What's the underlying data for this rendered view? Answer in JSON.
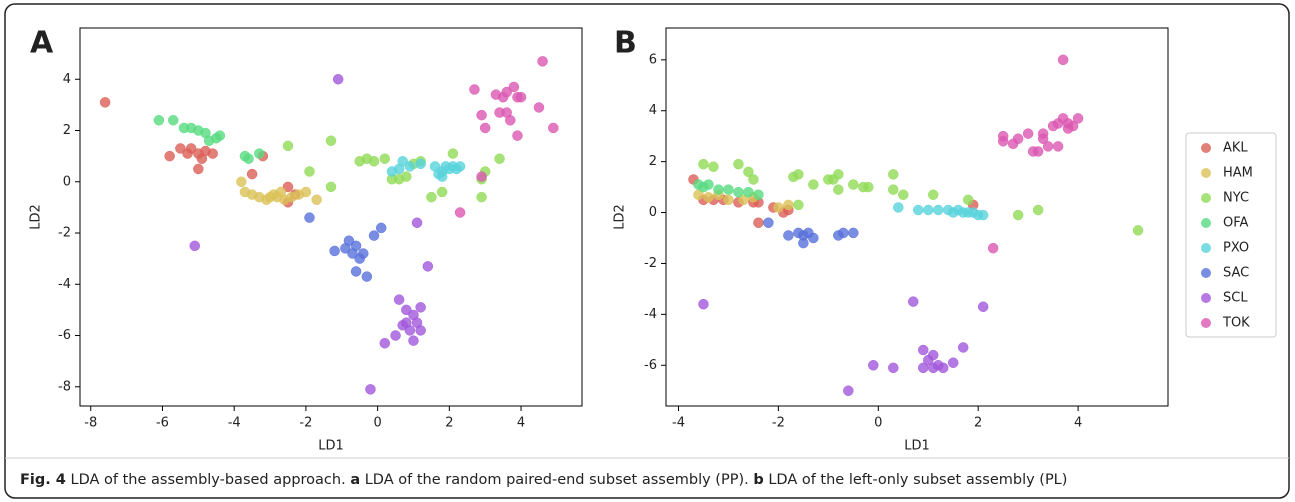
{
  "chart_data": [
    {
      "type": "scatter",
      "panel": "A",
      "xlabel": "LD1",
      "ylabel": "LD2",
      "xlim": [
        -8.3,
        5.7
      ],
      "ylim": [
        -8.75,
        6
      ],
      "xticks": [
        -8,
        -6,
        -4,
        -2,
        0,
        2,
        4
      ],
      "yticks": [
        -8,
        -6,
        -4,
        -2,
        0,
        2,
        4
      ],
      "legend": false,
      "series": [
        {
          "color": "#db5f57",
          "x": [
            -7.6,
            -5.8,
            -5.5,
            -5.3,
            -5.2,
            -5.0,
            -4.9,
            -5.0,
            -4.8,
            -4.6,
            -3.2,
            -3.5,
            -2.5,
            -2.5,
            -2.3
          ],
          "y": [
            3.1,
            1.0,
            1.3,
            1.1,
            1.3,
            1.1,
            0.9,
            0.5,
            1.2,
            1.1,
            1.0,
            0.3,
            -0.2,
            -0.8,
            -0.5
          ]
        },
        {
          "color": "#dbc257",
          "x": [
            -3.8,
            -3.7,
            -3.5,
            -3.3,
            -3.0,
            -2.8,
            -2.7,
            -2.6,
            -2.4,
            -2.2,
            -2.0,
            -1.7,
            -2.9,
            -3.1
          ],
          "y": [
            0,
            -0.4,
            -0.5,
            -0.6,
            -0.6,
            -0.6,
            -0.4,
            -0.7,
            -0.6,
            -0.5,
            -0.4,
            -0.7,
            -0.5,
            -0.7
          ]
        },
        {
          "color": "#91db57",
          "x": [
            -2.5,
            -1.3,
            -1.9,
            -1.3,
            -0.5,
            -0.3,
            -0.1,
            0.2,
            0.4,
            0.6,
            0.8,
            1.0,
            1.2,
            1.5,
            1.8,
            2.1,
            2.9,
            2.9,
            3.0,
            3.4
          ],
          "y": [
            1.4,
            1.6,
            0.4,
            -0.2,
            0.8,
            0.9,
            0.8,
            0.9,
            0.1,
            0.1,
            0.2,
            0.7,
            0.8,
            -0.6,
            -0.4,
            1.1,
            0.1,
            -0.6,
            0.4,
            0.9
          ]
        },
        {
          "color": "#57db80",
          "x": [
            -6.1,
            -5.7,
            -5.4,
            -5.2,
            -5.0,
            -4.8,
            -4.7,
            -4.5,
            -4.4,
            -3.7,
            -3.6,
            -3.3
          ],
          "y": [
            2.4,
            2.4,
            2.1,
            2.1,
            2.0,
            1.9,
            1.6,
            1.7,
            1.8,
            1.0,
            0.9,
            1.1
          ]
        },
        {
          "color": "#57d3db",
          "x": [
            0.4,
            0.6,
            0.7,
            0.9,
            1.2,
            1.6,
            1.7,
            1.8,
            1.9,
            2.0,
            2.1,
            2.2,
            2.3,
            1.8
          ],
          "y": [
            0.4,
            0.5,
            0.8,
            0.6,
            0.7,
            0.6,
            0.3,
            0.4,
            0.6,
            0.5,
            0.6,
            0.5,
            0.6,
            0.2
          ]
        },
        {
          "color": "#5770db",
          "x": [
            -1.9,
            -1.2,
            -0.9,
            -0.8,
            -0.7,
            -0.6,
            -0.5,
            -0.4,
            -0.3,
            -0.1,
            0.1,
            -0.6
          ],
          "y": [
            -1.4,
            -2.7,
            -2.6,
            -2.3,
            -2.8,
            -3.5,
            -3.0,
            -2.8,
            -3.7,
            -2.1,
            -1.8,
            -2.5
          ]
        },
        {
          "color": "#a157db",
          "x": [
            -5.1,
            -1.1,
            -0.2,
            0.2,
            0.5,
            0.6,
            0.8,
            0.7,
            0.9,
            1.0,
            1.1,
            1.2,
            1.2,
            1.4,
            1.1,
            0.8,
            1.0
          ],
          "y": [
            -2.5,
            4.0,
            -8.1,
            -6.3,
            -6.0,
            -4.6,
            -5.0,
            -5.6,
            -5.8,
            -5.2,
            -5.5,
            -4.9,
            -5.8,
            -3.3,
            -1.6,
            -5.5,
            -6.2
          ]
        },
        {
          "color": "#db57b2",
          "x": [
            2.7,
            2.9,
            3.0,
            3.3,
            3.5,
            3.6,
            3.8,
            3.9,
            4.0,
            3.4,
            3.6,
            3.7,
            3.9,
            4.5,
            4.6,
            4.9,
            2.3,
            2.9
          ],
          "y": [
            3.6,
            2.6,
            2.1,
            3.4,
            3.3,
            3.5,
            3.7,
            3.3,
            3.3,
            2.7,
            2.7,
            2.4,
            1.8,
            2.9,
            4.7,
            2.1,
            -1.2,
            0.2
          ]
        }
      ]
    },
    {
      "type": "scatter",
      "panel": "B",
      "xlabel": "LD1",
      "ylabel": "LD2",
      "xlim": [
        -4.25,
        5.8
      ],
      "ylim": [
        -7.6,
        7.25
      ],
      "xticks": [
        -4,
        -2,
        0,
        2,
        4
      ],
      "yticks": [
        -6,
        -4,
        -2,
        0,
        2,
        4,
        6
      ],
      "legend": true,
      "legend_position": "outside right",
      "series": [
        {
          "name": "AKL",
          "color": "#db5f57",
          "x": [
            -3.7,
            -3.5,
            -3.3,
            -3.1,
            -2.8,
            -2.5,
            -2.4,
            -2.1,
            -1.9,
            -1.8,
            -2.4,
            1.9
          ],
          "y": [
            1.3,
            0.5,
            0.5,
            0.5,
            0.4,
            0.4,
            0.4,
            0.2,
            0.0,
            0.1,
            -0.4,
            0.3
          ]
        },
        {
          "name": "HAM",
          "color": "#dbc257",
          "x": [
            -3.6,
            -3.4,
            -3.2,
            -3.0,
            -2.7,
            -2.5,
            -1.8,
            -2.0
          ],
          "y": [
            0.7,
            0.6,
            0.7,
            0.5,
            0.5,
            0.6,
            0.3,
            0.2
          ]
        },
        {
          "name": "NYC",
          "color": "#91db57",
          "x": [
            -3.5,
            -3.3,
            -2.8,
            -2.6,
            -2.5,
            -1.7,
            -1.6,
            -1.3,
            -1.0,
            -0.9,
            -0.8,
            -0.8,
            -0.5,
            -0.3,
            -0.2,
            0.3,
            0.3,
            0.5,
            1.1,
            1.8,
            2.8,
            3.2,
            5.2,
            -1.6
          ],
          "y": [
            1.9,
            1.8,
            1.9,
            1.6,
            1.3,
            1.4,
            1.5,
            1.1,
            1.3,
            1.3,
            1.5,
            0.9,
            1.1,
            1.0,
            1.0,
            1.5,
            0.9,
            0.7,
            0.7,
            0.5,
            -0.1,
            0.1,
            -0.7,
            0.3
          ]
        },
        {
          "name": "OFA",
          "color": "#57db80",
          "x": [
            -3.5,
            -3.4,
            -3.2,
            -3.0,
            -2.8,
            -2.6,
            -2.4,
            -3.6
          ],
          "y": [
            1.0,
            1.1,
            0.9,
            0.9,
            0.8,
            0.8,
            0.7,
            1.1
          ]
        },
        {
          "name": "PXO",
          "color": "#57d3db",
          "x": [
            0.4,
            0.8,
            1.0,
            1.2,
            1.4,
            1.5,
            1.6,
            1.7,
            1.8,
            1.9,
            2.0,
            2.1
          ],
          "y": [
            0.2,
            0.1,
            0.1,
            0.1,
            0.1,
            0.0,
            0.1,
            0.0,
            0.0,
            0.0,
            -0.1,
            -0.1
          ]
        },
        {
          "name": "SAC",
          "color": "#5770db",
          "x": [
            -2.2,
            -1.8,
            -1.6,
            -1.5,
            -1.4,
            -1.3,
            -0.8,
            -0.7,
            -0.5,
            -1.5
          ],
          "y": [
            -0.4,
            -0.9,
            -0.8,
            -1.2,
            -0.8,
            -1.0,
            -0.9,
            -0.8,
            -0.8,
            -0.9
          ]
        },
        {
          "name": "SCL",
          "color": "#a157db",
          "x": [
            -3.5,
            -0.6,
            -0.1,
            0.3,
            0.7,
            0.9,
            0.9,
            1.0,
            1.1,
            1.1,
            1.2,
            1.3,
            1.5,
            1.7,
            2.1
          ],
          "y": [
            -3.6,
            -7.0,
            -6.0,
            -6.1,
            -3.5,
            -5.4,
            -6.1,
            -5.8,
            -6.1,
            -5.6,
            -6.0,
            -6.1,
            -5.9,
            -5.3,
            -3.7
          ]
        },
        {
          "name": "TOK",
          "color": "#db57b2",
          "x": [
            2.3,
            2.5,
            2.5,
            2.7,
            2.8,
            3.0,
            3.1,
            3.2,
            3.3,
            3.3,
            3.4,
            3.6,
            3.6,
            3.7,
            3.8,
            3.8,
            3.9,
            4.0,
            3.7,
            3.5
          ],
          "y": [
            -1.4,
            3.0,
            2.8,
            2.7,
            2.9,
            3.1,
            2.4,
            2.4,
            3.1,
            2.9,
            2.6,
            2.6,
            3.5,
            3.7,
            3.3,
            3.5,
            3.4,
            3.7,
            6.0,
            3.4
          ]
        }
      ]
    }
  ],
  "caption": [
    {
      "text": "Fig. 4",
      "bold": true
    },
    {
      "text": " LDA of the assembly-based approach. ",
      "bold": false
    },
    {
      "text": "a",
      "bold": true
    },
    {
      "text": " LDA of the random paired-end subset assembly (PP). ",
      "bold": false
    },
    {
      "text": "b",
      "bold": true
    },
    {
      "text": " LDA of the left-only subset assembly (PL)",
      "bold": false
    }
  ]
}
